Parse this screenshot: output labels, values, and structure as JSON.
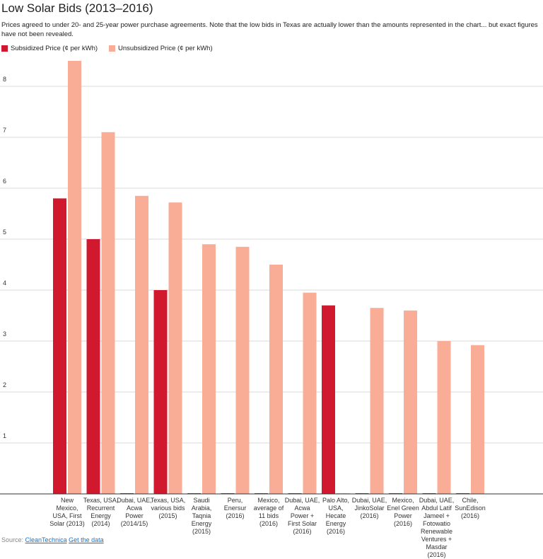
{
  "title": "Low Solar Bids (2013–2016)",
  "subtitle": "Prices agreed to under 20- and 25-year power purchase agreements. Note that the low bids in Texas are actually lower than the amounts represented in the chart... but exact figures have not been revealed.",
  "legend": [
    {
      "label": "Subsidized Price (¢ per kWh)",
      "color": "#d0192e"
    },
    {
      "label": "Unsubsidized Price (¢ per kWh)",
      "color": "#f9ad97"
    }
  ],
  "footer": {
    "source_label": "Source:",
    "source_link": "CleanTechnica",
    "data_link": "Get the data"
  },
  "chart_data": {
    "type": "bar",
    "categories": [
      [
        "New",
        "Mexico,",
        "USA, First",
        "Solar (2013)"
      ],
      [
        "Texas, USA,",
        "Recurrent",
        "Energy",
        "(2014)"
      ],
      [
        "Dubai, UAE,",
        "Acwa",
        "Power",
        "(2014/15)"
      ],
      [
        "Texas, USA,",
        "various bids",
        "(2015)"
      ],
      [
        "Saudi",
        "Arabia,",
        "Taqnia",
        "Energy",
        "(2015)"
      ],
      [
        "Peru,",
        "Enersur",
        "(2016)"
      ],
      [
        "Mexico,",
        "average of",
        "11 bids",
        "(2016)"
      ],
      [
        "Dubai, UAE,",
        "Acwa",
        "Power +",
        "First Solar",
        "(2016)"
      ],
      [
        "Palo Alto,",
        "USA,",
        "Hecate",
        "Energy",
        "(2016)"
      ],
      [
        "Dubai, UAE,",
        "JinkoSolar",
        "(2016)"
      ],
      [
        "Mexico,",
        "Enel Green",
        "Power",
        "(2016)"
      ],
      [
        "Dubai, UAE,",
        "Abdul Latif",
        "Jameel +",
        "Fotowatio",
        "Renewable",
        "Ventures +",
        "Masdar",
        "(2016)"
      ],
      [
        "Chile,",
        "SunEdison",
        "(2016)"
      ]
    ],
    "series": [
      {
        "name": "Subsidized Price (¢ per kWh)",
        "color": "#d0192e",
        "values": [
          5.8,
          5.0,
          0,
          4.0,
          0,
          0,
          0,
          0,
          3.7,
          0,
          0,
          0,
          0
        ]
      },
      {
        "name": "Unsubsidized Price (¢ per kWh)",
        "color": "#f9ad97",
        "values": [
          8.5,
          7.1,
          5.85,
          5.72,
          4.9,
          4.85,
          4.5,
          3.95,
          0,
          3.65,
          3.6,
          3.0,
          2.92
        ]
      }
    ],
    "ylim": [
      0,
      9
    ],
    "yticks": [
      1,
      2,
      3,
      4,
      5,
      6,
      7,
      8
    ],
    "grid": true,
    "legend_position": "top-left"
  }
}
